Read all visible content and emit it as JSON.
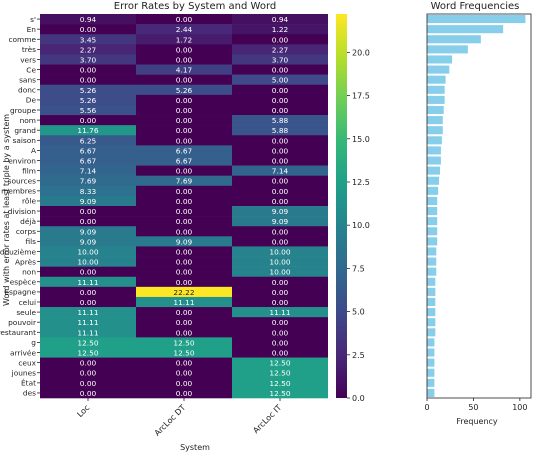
{
  "chart_data": [
    {
      "type": "heatmap",
      "title": "Error Rates by System and Word",
      "xlabel": "System",
      "ylabel": "Word with error rates at least triple by a system",
      "columns": [
        "Loc",
        "ArcLoc DT",
        "ArcLoc IT"
      ],
      "rows": [
        "s'",
        "En",
        "comme",
        "très",
        "vers",
        "Ce",
        "sans",
        "donc",
        "De",
        "groupe",
        "nom",
        "grand",
        "saison",
        "A",
        "environ",
        "film",
        "sources",
        "membres",
        "rôle",
        "division",
        "déjà",
        "corps",
        "fils",
        "douzième",
        "Après",
        "non",
        "espèce",
        "Espagne",
        "celui",
        "seule",
        "pouvoir",
        "restaurant",
        "g",
        "arrivée",
        "ceux",
        "jounes",
        "État",
        "des"
      ],
      "values": [
        [
          "0.94",
          "0.00",
          "0.94"
        ],
        [
          "0.00",
          "2.44",
          "1.22"
        ],
        [
          "3.45",
          "1.72",
          "0.00"
        ],
        [
          "2.27",
          "0.00",
          "2.27"
        ],
        [
          "3.70",
          "0.00",
          "3.70"
        ],
        [
          "0.00",
          "4.17",
          "0.00"
        ],
        [
          "0.00",
          "0.00",
          "5.00"
        ],
        [
          "5.26",
          "5.26",
          "0.00"
        ],
        [
          "5.26",
          "0.00",
          "0.00"
        ],
        [
          "5.56",
          "0.00",
          "0.00"
        ],
        [
          "0.00",
          "0.00",
          "5.88"
        ],
        [
          "11.76",
          "0.00",
          "5.88"
        ],
        [
          "6.25",
          "0.00",
          "0.00"
        ],
        [
          "6.67",
          "6.67",
          "0.00"
        ],
        [
          "6.67",
          "6.67",
          "0.00"
        ],
        [
          "7.14",
          "0.00",
          "7.14"
        ],
        [
          "7.69",
          "7.69",
          "0.00"
        ],
        [
          "8.33",
          "0.00",
          "0.00"
        ],
        [
          "9.09",
          "0.00",
          "0.00"
        ],
        [
          "0.00",
          "0.00",
          "9.09"
        ],
        [
          "0.00",
          "0.00",
          "9.09"
        ],
        [
          "9.09",
          "0.00",
          "0.00"
        ],
        [
          "9.09",
          "9.09",
          "0.00"
        ],
        [
          "10.00",
          "0.00",
          "10.00"
        ],
        [
          "10.00",
          "0.00",
          "10.00"
        ],
        [
          "0.00",
          "0.00",
          "10.00"
        ],
        [
          "11.11",
          "0.00",
          "0.00"
        ],
        [
          "0.00",
          "22.22",
          "0.00"
        ],
        [
          "0.00",
          "11.11",
          "0.00"
        ],
        [
          "11.11",
          "0.00",
          "11.11"
        ],
        [
          "11.11",
          "0.00",
          "0.00"
        ],
        [
          "11.11",
          "0.00",
          "0.00"
        ],
        [
          "12.50",
          "12.50",
          "0.00"
        ],
        [
          "12.50",
          "12.50",
          "0.00"
        ],
        [
          "0.00",
          "0.00",
          "12.50"
        ],
        [
          "0.00",
          "0.00",
          "12.50"
        ],
        [
          "0.00",
          "0.00",
          "12.50"
        ],
        [
          "0.00",
          "0.00",
          "12.50"
        ]
      ],
      "colorbar": {
        "ticks": [
          "0.0",
          "2.5",
          "5.0",
          "7.5",
          "10.0",
          "12.5",
          "15.0",
          "17.5",
          "20.0"
        ],
        "range": [
          0,
          22.22
        ],
        "colormap": "viridis"
      }
    },
    {
      "type": "bar",
      "orientation": "horizontal",
      "title": "Word Frequencies",
      "xlabel": "Frequency",
      "xticks": [
        "0",
        "50",
        "100"
      ],
      "xlim": [
        0,
        112
      ],
      "bar_color": "#87ceeb",
      "categories": [
        "s'",
        "En",
        "comme",
        "très",
        "vers",
        "Ce",
        "sans",
        "donc",
        "De",
        "groupe",
        "nom",
        "grand",
        "saison",
        "A",
        "environ",
        "film",
        "sources",
        "membres",
        "rôle",
        "division",
        "déjà",
        "corps",
        "fils",
        "douzième",
        "Après",
        "non",
        "espèce",
        "Espagne",
        "celui",
        "seule",
        "pouvoir",
        "restaurant",
        "g",
        "arrivée",
        "ceux",
        "jounes",
        "État",
        "des"
      ],
      "values": [
        106,
        82,
        58,
        44,
        27,
        24,
        20,
        19,
        19,
        18,
        17,
        17,
        16,
        15,
        15,
        14,
        13,
        12,
        11,
        11,
        11,
        11,
        11,
        10,
        10,
        10,
        9,
        9,
        9,
        9,
        9,
        9,
        8,
        8,
        8,
        8,
        8,
        8
      ]
    }
  ]
}
